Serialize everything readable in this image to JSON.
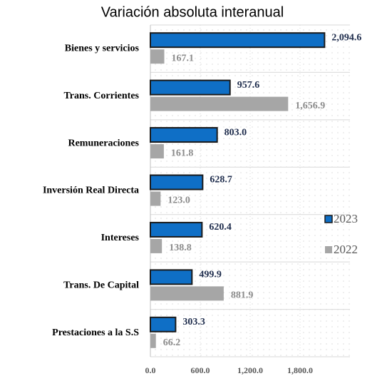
{
  "chart_data": {
    "type": "bar",
    "orientation": "horizontal",
    "title": "Variación absoluta interanual",
    "categories": [
      "Bienes y servicios",
      "Trans. Corrientes",
      "Remuneraciones",
      "Inversión Real Directa",
      "Intereses",
      "Trans. De Capital",
      "Prestaciones a la S.S"
    ],
    "series": [
      {
        "name": "2023",
        "color": "#0f6fc6",
        "values": [
          2094.6,
          957.6,
          803.0,
          628.7,
          620.4,
          499.9,
          303.3
        ],
        "value_labels": [
          "2,094.6",
          "957.6",
          "803.0",
          "628.7",
          "620.4",
          "499.9",
          "303.3"
        ]
      },
      {
        "name": "2022",
        "color": "#a6a6a6",
        "values": [
          167.1,
          1656.9,
          161.8,
          123.0,
          138.8,
          881.9,
          66.2
        ],
        "value_labels": [
          "167.1",
          "1,656.9",
          "161.8",
          "123.0",
          "138.8",
          "881.9",
          "66.2"
        ]
      }
    ],
    "xlim": [
      0,
      2400
    ],
    "xticks": [
      {
        "value": 0,
        "label": "0.0"
      },
      {
        "value": 600,
        "label": "600.0"
      },
      {
        "value": 1200,
        "label": "1,200.0"
      },
      {
        "value": 1800,
        "label": "1,800.0"
      }
    ],
    "legend": "right",
    "grid": true
  }
}
